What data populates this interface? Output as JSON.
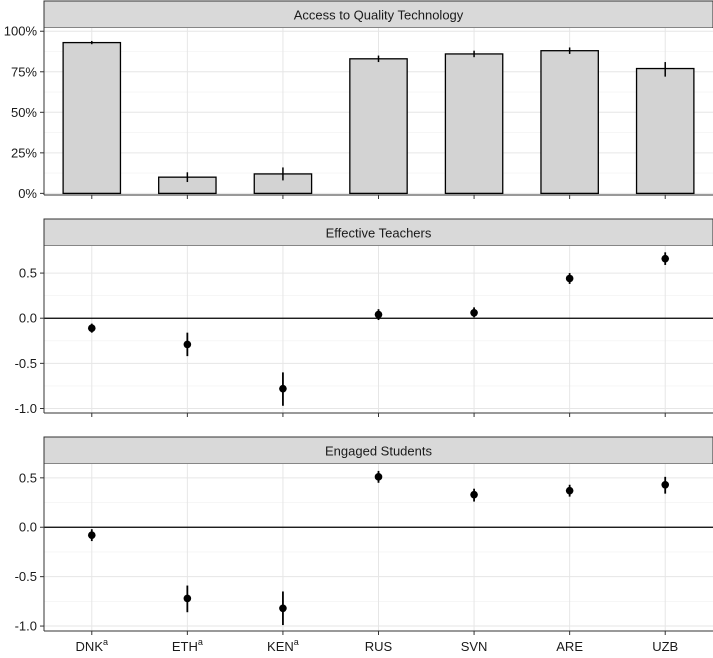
{
  "chart_data": [
    {
      "type": "bar",
      "title": "Access to Quality Technology",
      "categories": [
        "DNK",
        "ETH",
        "KEN",
        "RUS",
        "SVN",
        "ARE",
        "UZB"
      ],
      "category_superscripts": [
        "a",
        "a",
        "a",
        "",
        "",
        "",
        ""
      ],
      "values": [
        93,
        10,
        12,
        83,
        86,
        88,
        77
      ],
      "error_low": [
        92,
        7,
        8,
        81,
        84,
        86,
        72
      ],
      "error_high": [
        94,
        13,
        16,
        85,
        88,
        90,
        81
      ],
      "ylim": [
        -1,
        102
      ],
      "yticks": [
        0,
        25,
        50,
        75,
        100
      ],
      "ytick_labels": [
        "0%",
        "25%",
        "50%",
        "75%",
        "100%"
      ],
      "bar_fill": "#d3d3d3",
      "bar_stroke": "#000000",
      "grid": true
    },
    {
      "type": "scatter",
      "title": "Effective Teachers",
      "categories": [
        "DNK",
        "ETH",
        "KEN",
        "RUS",
        "SVN",
        "ARE",
        "UZB"
      ],
      "category_superscripts": [
        "a",
        "a",
        "a",
        "",
        "",
        "",
        ""
      ],
      "values": [
        -0.11,
        -0.29,
        -0.78,
        0.04,
        0.06,
        0.44,
        0.66
      ],
      "error_low": [
        -0.16,
        -0.42,
        -0.97,
        -0.02,
        0.01,
        0.38,
        0.59
      ],
      "error_high": [
        -0.06,
        -0.16,
        -0.6,
        0.1,
        0.12,
        0.5,
        0.73
      ],
      "ylim": [
        -1.05,
        0.8
      ],
      "yticks": [
        -1.0,
        -0.5,
        0.0,
        0.5
      ],
      "ytick_labels": [
        "-1.0",
        "-0.5",
        "0.0",
        "0.5"
      ],
      "reference_line": 0,
      "grid": true
    },
    {
      "type": "scatter",
      "title": "Engaged Students",
      "categories": [
        "DNK",
        "ETH",
        "KEN",
        "RUS",
        "SVN",
        "ARE",
        "UZB"
      ],
      "category_superscripts": [
        "a",
        "a",
        "a",
        "",
        "",
        "",
        ""
      ],
      "values": [
        -0.08,
        -0.72,
        -0.82,
        0.51,
        0.33,
        0.37,
        0.43
      ],
      "error_low": [
        -0.14,
        -0.86,
        -0.99,
        0.45,
        0.26,
        0.31,
        0.34
      ],
      "error_high": [
        -0.02,
        -0.59,
        -0.65,
        0.57,
        0.39,
        0.43,
        0.51
      ],
      "ylim": [
        -1.05,
        0.64
      ],
      "yticks": [
        -1.0,
        -0.5,
        0.0,
        0.5
      ],
      "ytick_labels": [
        "-1.0",
        "-0.5",
        "0.0",
        "0.5"
      ],
      "reference_line": 0,
      "grid": true
    }
  ]
}
